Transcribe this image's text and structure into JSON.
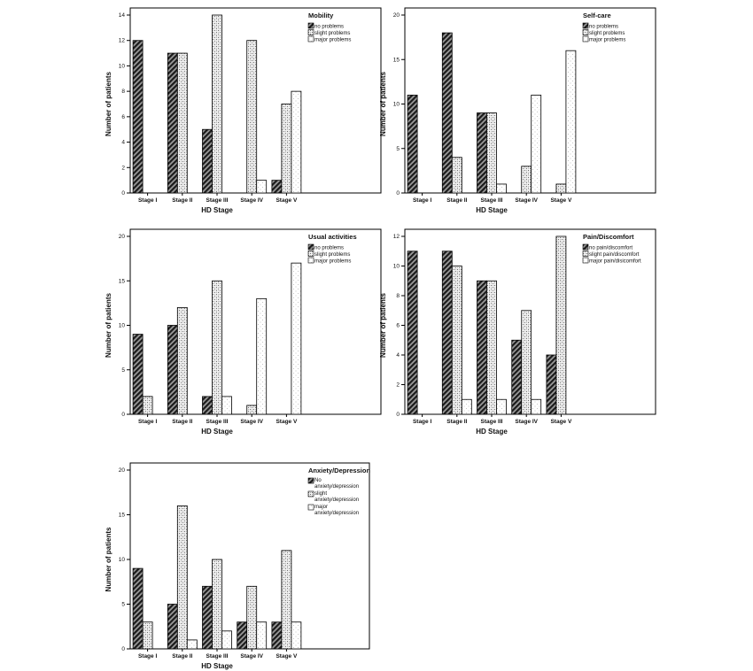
{
  "chart_data": [
    {
      "type": "bar",
      "title": "Mobility",
      "categories": [
        "Stage I",
        "Stage II",
        "Stage III",
        "Stage IV",
        "Stage V"
      ],
      "series": [
        {
          "name": "no problems",
          "values": [
            12,
            11,
            5,
            0,
            1
          ]
        },
        {
          "name": "slight problems",
          "values": [
            0,
            11,
            14,
            12,
            7
          ]
        },
        {
          "name": "major problems",
          "values": [
            0,
            0,
            0,
            1,
            8
          ]
        }
      ],
      "xlabel": "HD Stage",
      "ylabel": "Number of patients",
      "ylim": [
        0,
        14
      ],
      "yticks": [
        0,
        2,
        4,
        6,
        8,
        10,
        12,
        14
      ],
      "legend": "top-right"
    },
    {
      "type": "bar",
      "title": "Self-care",
      "categories": [
        "Stage I",
        "Stage II",
        "Stage III",
        "Stage IV",
        "Stage V"
      ],
      "series": [
        {
          "name": "no problems",
          "values": [
            11,
            18,
            9,
            0,
            0
          ]
        },
        {
          "name": "slight problems",
          "values": [
            0,
            4,
            9,
            3,
            1
          ]
        },
        {
          "name": "major problems",
          "values": [
            0,
            0,
            1,
            11,
            16
          ]
        }
      ],
      "xlabel": "HD Stage",
      "ylabel": "Number of patients",
      "ylim": [
        0,
        20
      ],
      "yticks": [
        0,
        5,
        10,
        15,
        20
      ],
      "legend": "top-right"
    },
    {
      "type": "bar",
      "title": "Usual activities",
      "categories": [
        "Stage I",
        "Stage II",
        "Stage III",
        "Stage IV",
        "Stage V"
      ],
      "series": [
        {
          "name": "no problems",
          "values": [
            9,
            10,
            2,
            0,
            0
          ]
        },
        {
          "name": "slight problems",
          "values": [
            2,
            12,
            15,
            1,
            0
          ]
        },
        {
          "name": "major problems",
          "values": [
            0,
            0,
            2,
            13,
            17
          ]
        }
      ],
      "xlabel": "HD Stage",
      "ylabel": "Number of patients",
      "ylim": [
        0,
        20
      ],
      "yticks": [
        0,
        5,
        10,
        15,
        20
      ],
      "legend": "top-right"
    },
    {
      "type": "bar",
      "title": "Pain/Discomfort",
      "categories": [
        "Stage I",
        "Stage II",
        "Stage III",
        "Stage IV",
        "Stage V"
      ],
      "series": [
        {
          "name": "no pain/discomfort",
          "values": [
            11,
            11,
            9,
            5,
            4
          ]
        },
        {
          "name": "slight pain/discomfort",
          "values": [
            0,
            10,
            9,
            7,
            12
          ]
        },
        {
          "name": "major pain/disicomfort",
          "values": [
            0,
            1,
            1,
            1,
            0
          ]
        }
      ],
      "xlabel": "HD Stage",
      "ylabel": "Number of patients",
      "ylim": [
        0,
        12
      ],
      "yticks": [
        0,
        2,
        4,
        6,
        8,
        10,
        12
      ],
      "legend": "top-right"
    },
    {
      "type": "bar",
      "title": "Anxiety/Depression",
      "categories": [
        "Stage I",
        "Stage II",
        "Stage III",
        "Stage IV",
        "Stage V"
      ],
      "series": [
        {
          "name": "No anxiety/depression",
          "values": [
            9,
            5,
            7,
            3,
            3
          ]
        },
        {
          "name": "slight anxiety/depression",
          "values": [
            3,
            16,
            10,
            7,
            11
          ]
        },
        {
          "name": "major anxiety/depression",
          "values": [
            0,
            1,
            2,
            3,
            3
          ]
        }
      ],
      "xlabel": "HD Stage",
      "ylabel": "Number of patients",
      "ylim": [
        0,
        20
      ],
      "yticks": [
        0,
        5,
        10,
        15,
        20
      ],
      "legend": "top-right"
    }
  ]
}
